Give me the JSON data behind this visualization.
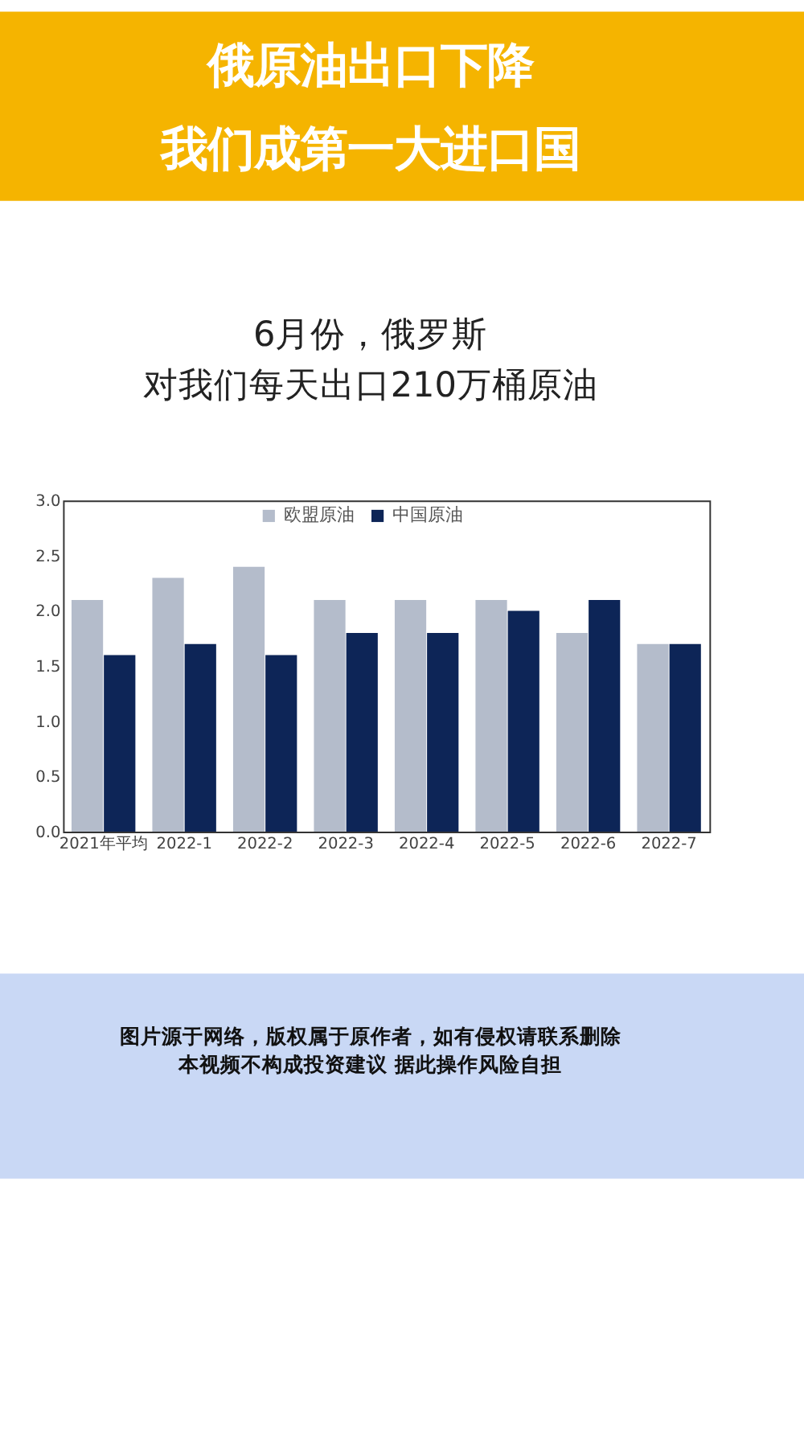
{
  "chart_data": {
    "type": "bar",
    "title": "俄原油出口下降",
    "subtitle": "我们成第一大进口国",
    "categories": [
      "2021年平均",
      "2022-1",
      "2022-2",
      "2022-3",
      "2022-4",
      "2022-5",
      "2022-6",
      "2022-7"
    ],
    "series": [
      {
        "name": "欧盟原油",
        "color": "#b4bccb",
        "values": [
          2.1,
          2.3,
          2.4,
          2.1,
          2.1,
          2.1,
          1.8,
          1.7
        ]
      },
      {
        "name": "中国原油",
        "color": "#0d2557",
        "values": [
          1.6,
          1.7,
          1.6,
          1.8,
          1.8,
          2.0,
          2.1,
          1.7
        ]
      }
    ],
    "ylim": [
      0,
      3.0
    ],
    "yticks": [
      {
        "value": 0,
        "label": "0.0"
      },
      0.5,
      {
        "value": 1,
        "label": "1.0"
      },
      1.5,
      {
        "value": 2,
        "label": "2.0"
      },
      2.5,
      {
        "value": 3,
        "label": "3.0"
      }
    ],
    "legend": "top",
    "grid": false,
    "annotations": [
      "6月份，俄罗斯",
      "对我们每天出口210万桶原油",
      "图片源于网络，版权属于原作者，如有侵权请联系删除",
      "本视频不构成投资建议  据此操作风险自担"
    ]
  }
}
